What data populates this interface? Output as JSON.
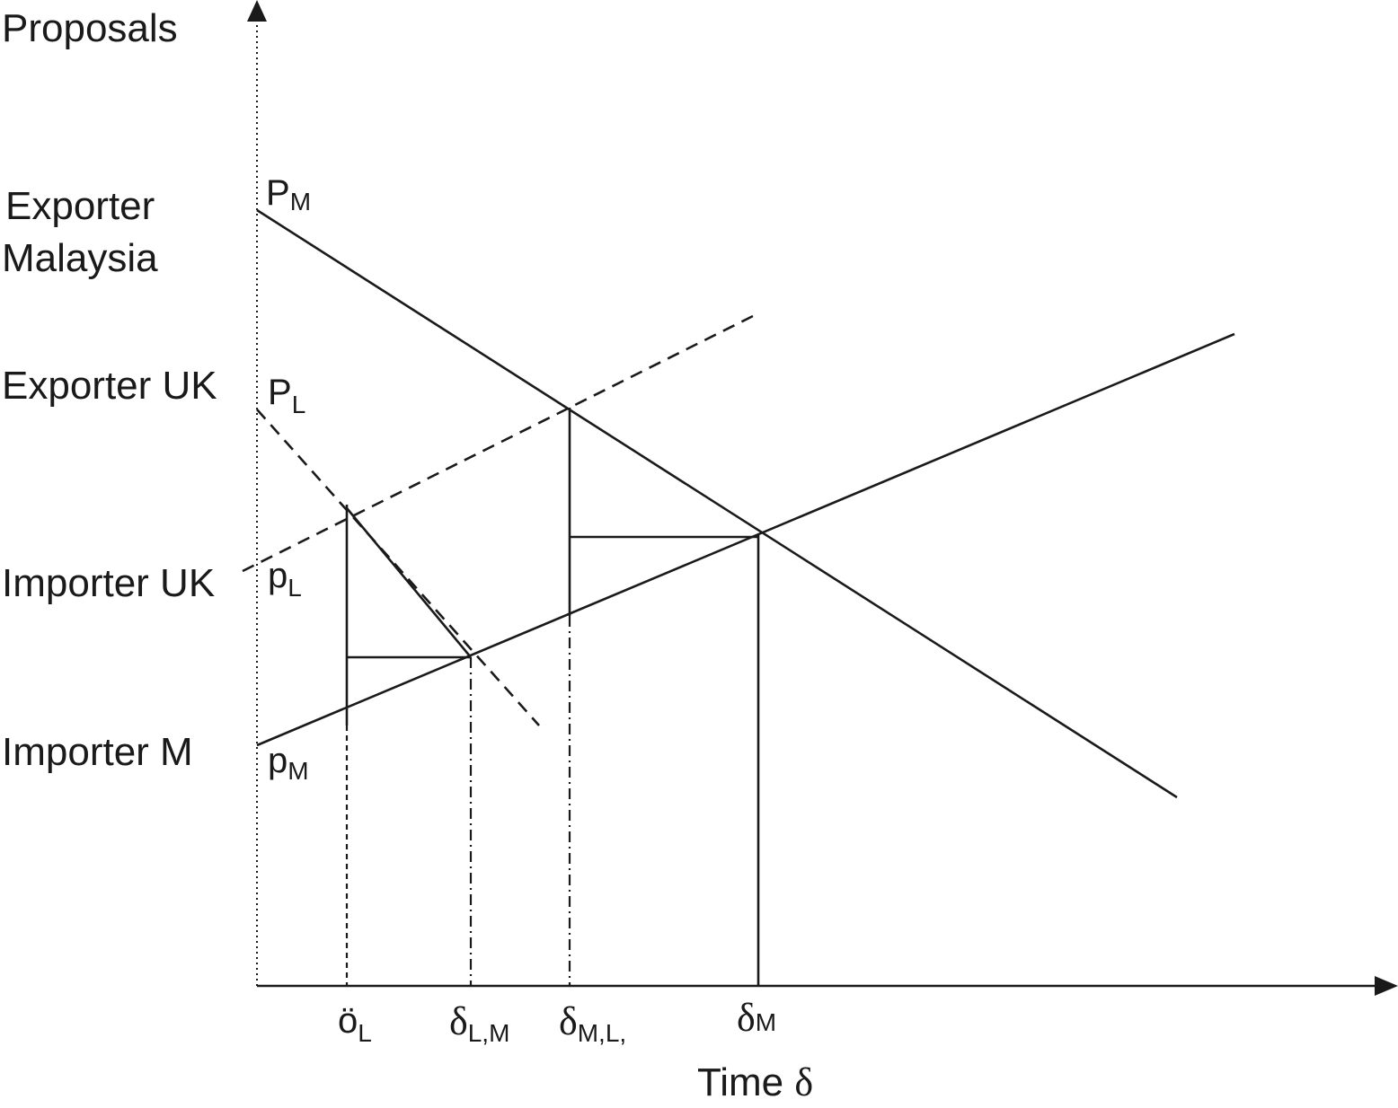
{
  "axes": {
    "y_label": "Proposals",
    "x_label_text": "Time ",
    "x_label_symbol": "δ"
  },
  "actors": {
    "exporter_malaysia_line1": "Exporter",
    "exporter_malaysia_line2": "Malaysia",
    "exporter_uk": "Exporter UK",
    "importer_uk": "Importer UK",
    "importer_m": "Importer M"
  },
  "intercepts": {
    "P_M": {
      "base": "P",
      "sub": "M"
    },
    "P_L": {
      "base": "P",
      "sub": "L"
    },
    "p_L": {
      "base": "p",
      "sub": "L"
    },
    "p_M": {
      "base": "p",
      "sub": "M"
    }
  },
  "time_points": {
    "oL": {
      "base": "ö",
      "sub": "L"
    },
    "dLM": {
      "base": "δ",
      "sub": "L,M"
    },
    "dML": {
      "base": "δ",
      "sub": "M,L,"
    },
    "dM": {
      "base": "δ",
      "sub": "M"
    }
  }
}
